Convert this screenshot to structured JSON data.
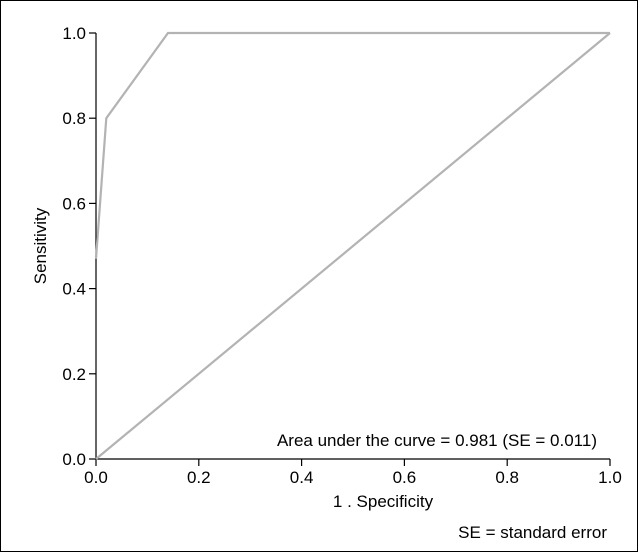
{
  "chart_data": {
    "type": "line",
    "title": "",
    "xlabel": "1 . Specificity",
    "ylabel": "Sensitivity",
    "xlim": [
      0,
      1
    ],
    "ylim": [
      0,
      1
    ],
    "x_ticks": [
      "0.0",
      "0.2",
      "0.4",
      "0.6",
      "0.8",
      "1.0"
    ],
    "y_ticks": [
      "0.0",
      "0.2",
      "0.4",
      "0.6",
      "0.8",
      "1.0"
    ],
    "grid": false,
    "series": [
      {
        "role": "roc-curve",
        "color": "#b3b3b3",
        "points": [
          [
            0.0,
            0.47
          ],
          [
            0.02,
            0.8
          ],
          [
            0.14,
            1.0
          ],
          [
            1.0,
            1.0
          ]
        ]
      },
      {
        "role": "reference-diagonal",
        "color": "#b3b3b3",
        "points": [
          [
            0.0,
            0.0
          ],
          [
            1.0,
            1.0
          ]
        ]
      }
    ],
    "annotations": [
      "Area under the curve = 0.981 (SE = 0.011)",
      "SE = standard error"
    ]
  }
}
